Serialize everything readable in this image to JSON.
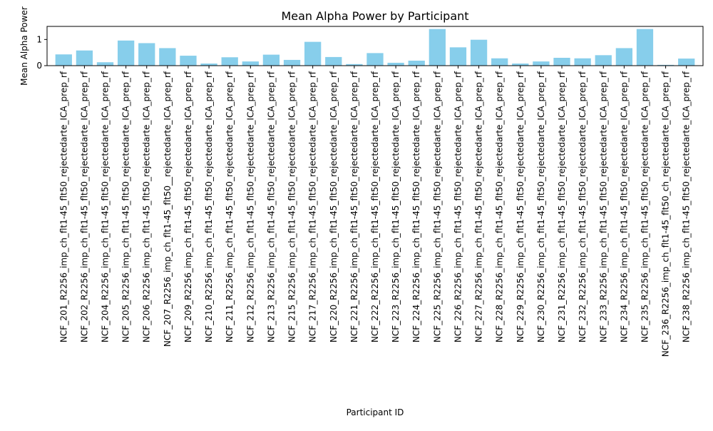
{
  "chart_data": {
    "type": "bar",
    "title": "Mean Alpha Power by Participant",
    "xlabel": "Participant ID",
    "ylabel": "Mean Alpha Power",
    "ylim": [
      0,
      1.5
    ],
    "yticks": [
      0,
      1
    ],
    "grid": false,
    "legend": "none",
    "bar_color": "#87ceeb",
    "categories": [
      "NCF_201_R2256_imp_ch_flt1-45_flt50_rejectedarte_ICA_prep_rf",
      "NCF_202_R2256_imp_ch_flt1-45_flt50_rejectedarte_ICA_prep_rf",
      "NCF_204_R2256_imp_ch_flt1-45_flt50_rejectedarte_ICA_prep_rf",
      "NCF_205_R2256_imp_ch_flt1-45_flt50_rejectedarte_ICA_prep_rf",
      "NCF_206_R2256_imp_ch_flt1-45_flt50_rejectedarte_ICA_prep_rf",
      "NCF_207_R2256_imp_ch_flt1-45_flt50__rejectedarte_ICA_prep_rf",
      "NCF_209_R2256_imp_ch_flt1-45_flt50_rejectedarte_ICA_prep_rf",
      "NCF_210_R2256_imp_ch_flt1-45_flt50_rejectedarte_ICA_prep_rf",
      "NCF_211_R2256_imp_ch_flt1-45_flt50_rejectedarte_ICA_prep_rf",
      "NCF_212_R2256_imp_ch_flt1-45_flt50_rejectedarte_ICA_prep_rf",
      "NCF_213_R2256_imp_ch_flt1-45_flt50_rejectedarte_ICA_prep_rf",
      "NCF_215_R2256_imp_ch_flt1-45_flt50_rejectedarte_ICA_prep_rf",
      "NCF_217_R2256_imp_ch_flt1-45_flt50_rejectedarte_ICA_prep_rf",
      "NCF_220_R2256_imp_ch_flt1-45_flt50_rejectedarte_ICA_prep_rf",
      "NCF_221_R2256_imp_ch_flt1-45_flt50_rejectedarte_ICA_prep_rf",
      "NCF_222_R2256_imp_ch_flt1-45_flt50_rejectedarte_ICA_prep_rf",
      "NCF_223_R2256_imp_ch_flt1-45_flt50_rejectedarte_ICA_prep_rf",
      "NCF_224_R2256_imp_ch_flt1-45_flt50_rejectedarte_ICA_prep_rf",
      "NCF_225_R2256_imp_ch_flt1-45_flt50_rejectedarte_ICA_prep_rf",
      "NCF_226_R2256_imp_ch_flt1-45_flt50_rejectedarte_ICA_prep_rf",
      "NCF_227_R2256_imp_ch_flt1-45_flt50_rejectedarte_ICA_prep_rf",
      "NCF_228_R2256_imp_ch_flt1-45_flt50_rejectedarte_ICA_prep_rf",
      "NCF_229_R2256_imp_ch_flt1-45_flt50_rejectedarte_ICA_prep_rf",
      "NCF_230_R2256_imp_ch_flt1-45_flt50_rejectedarte_ICA_prep_rf",
      "NCF_231_R2256_imp_ch_flt1-45_flt50_rejectedarte_ICA_prep_rf",
      "NCF_232_R2256_imp_ch_flt1-45_flt50_rejectedarte_ICA_prep_rf",
      "NCF_233_R2256_imp_ch_flt1-45_flt50_rejectedarte_ICA_prep_rf",
      "NCF_234_R2256_imp_ch_flt1-45_flt50_rejectedarte_ICA_prep_rf",
      "NCF_235_R2256_imp_ch_flt1-45_flt50_rejectedarte_ICA_prep_rf",
      "NCF_236_R2256_imp_ch_flt1-45_flt50_ch_rejectedarte_ICA_prep_rf",
      "NCF_238_R2256_imp_ch_flt1-45_flt50_rejectedarte_ICA_prep_rf"
    ],
    "values": [
      0.43,
      0.58,
      0.13,
      0.96,
      0.86,
      0.67,
      0.38,
      0.08,
      0.32,
      0.16,
      0.42,
      0.22,
      0.91,
      0.33,
      0.06,
      0.48,
      0.11,
      0.19,
      1.4,
      0.7,
      0.99,
      0.28,
      0.08,
      0.16,
      0.3,
      0.28,
      0.4,
      0.67,
      1.4,
      0.03,
      0.27
    ]
  }
}
